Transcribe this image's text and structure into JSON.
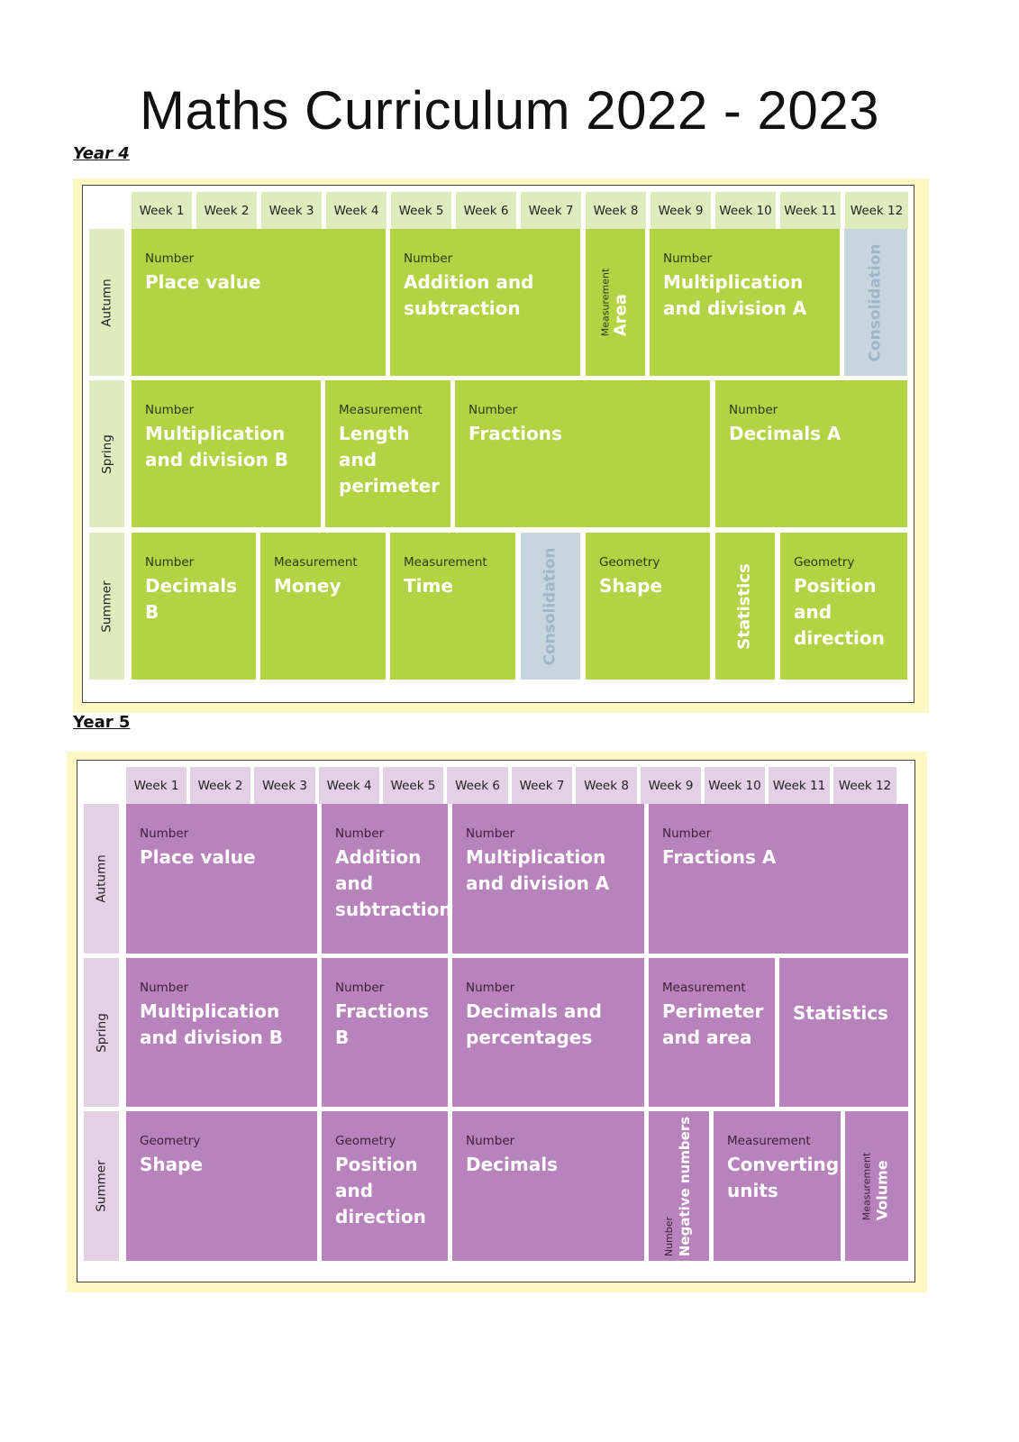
{
  "page_title": "Maths Curriculum 2022 - 2023",
  "colors": {
    "y4_block": "#b2d343",
    "y4_header": "#deebbd",
    "y5_block": "#b882bd",
    "y5_header": "#e3d0e5",
    "consolidation": "#c7d6de",
    "panel": "#fdf8c4"
  },
  "year4": {
    "label": "Year 4",
    "weeks": [
      "Week 1",
      "Week 2",
      "Week 3",
      "Week 4",
      "Week 5",
      "Week 6",
      "Week 7",
      "Week 8",
      "Week 9",
      "Week 10",
      "Week 11",
      "Week 12"
    ],
    "terms": [
      "Autumn",
      "Spring",
      "Summer"
    ],
    "autumn": [
      {
        "cat": "Number",
        "title": "Place value"
      },
      {
        "cat": "Number",
        "title": "Addition and subtraction"
      },
      {
        "cat": "Measurement",
        "title": "Area"
      },
      {
        "cat": "Number",
        "title": "Multiplication and division A"
      },
      {
        "title": "Consolidation"
      }
    ],
    "spring": [
      {
        "cat": "Number",
        "title": "Multiplication and division B"
      },
      {
        "cat": "Measurement",
        "title": "Length and perimeter"
      },
      {
        "cat": "Number",
        "title": "Fractions"
      },
      {
        "cat": "Number",
        "title": "Decimals A"
      }
    ],
    "summer": [
      {
        "cat": "Number",
        "title": "Decimals B"
      },
      {
        "cat": "Measurement",
        "title": "Money"
      },
      {
        "cat": "Measurement",
        "title": "Time"
      },
      {
        "title": "Consolidation"
      },
      {
        "cat": "Geometry",
        "title": "Shape"
      },
      {
        "title": "Statistics"
      },
      {
        "cat": "Geometry",
        "title": "Position and direction"
      }
    ]
  },
  "year5": {
    "label": "Year 5",
    "weeks": [
      "Week 1",
      "Week 2",
      "Week 3",
      "Week 4",
      "Week 5",
      "Week 6",
      "Week 7",
      "Week 8",
      "Week 9",
      "Week 10",
      "Week 11",
      "Week 12"
    ],
    "terms": [
      "Autumn",
      "Spring",
      "Summer"
    ],
    "autumn": [
      {
        "cat": "Number",
        "title": "Place value"
      },
      {
        "cat": "Number",
        "title": "Addition and subtraction"
      },
      {
        "cat": "Number",
        "title": "Multiplication and division A"
      },
      {
        "cat": "Number",
        "title": "Fractions A"
      }
    ],
    "spring": [
      {
        "cat": "Number",
        "title": "Multiplication and division B"
      },
      {
        "cat": "Number",
        "title": "Fractions B"
      },
      {
        "cat": "Number",
        "title": "Decimals and percentages"
      },
      {
        "cat": "Measurement",
        "title": "Perimeter and area"
      },
      {
        "title": "Statistics"
      }
    ],
    "summer": [
      {
        "cat": "Geometry",
        "title": "Shape"
      },
      {
        "cat": "Geometry",
        "title": "Position and direction"
      },
      {
        "cat": "Number",
        "title": "Decimals"
      },
      {
        "cat": "Number",
        "title": "Negative numbers"
      },
      {
        "cat": "Measurement",
        "title": "Converting units"
      },
      {
        "cat": "Measurement",
        "title": "Volume"
      }
    ]
  }
}
